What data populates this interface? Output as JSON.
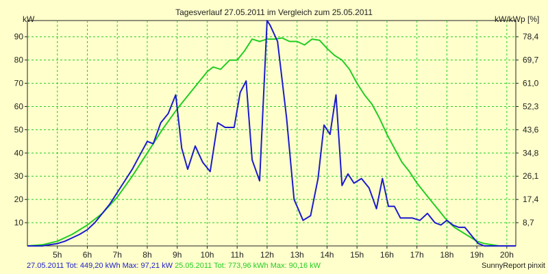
{
  "chart_data": {
    "type": "line",
    "title": "Tagesverlauf 27.05.2011 im Vergleich zum 25.05.2011",
    "ylabel_left": "kW",
    "ylabel_right": "kW/kWp [%]",
    "x_ticks": [
      "5h",
      "6h",
      "7h",
      "8h",
      "9h",
      "10h",
      "11h",
      "12h",
      "13h",
      "14h",
      "15h",
      "16h",
      "17h",
      "18h",
      "19h",
      "20h"
    ],
    "x_tick_values": [
      5,
      6,
      7,
      8,
      9,
      10,
      11,
      12,
      13,
      14,
      15,
      16,
      17,
      18,
      19,
      20
    ],
    "xlim": [
      4.0,
      20.3
    ],
    "ylim": [
      0,
      97
    ],
    "y_ticks_left": [
      10,
      20,
      30,
      40,
      50,
      60,
      70,
      80,
      90
    ],
    "y_ticks_right": [
      "8,7",
      "17,4",
      "26,1",
      "34,8",
      "43,6",
      "52,3",
      "61,0",
      "69,7",
      "78,4"
    ],
    "grid": true,
    "series": [
      {
        "name": "27.05.2011",
        "color": "#1a1acc",
        "x": [
          4.0,
          4.25,
          4.5,
          4.75,
          5.0,
          5.25,
          5.5,
          5.75,
          6.0,
          6.25,
          6.5,
          6.75,
          7.0,
          7.25,
          7.5,
          7.75,
          8.0,
          8.2,
          8.45,
          8.7,
          8.95,
          9.15,
          9.35,
          9.6,
          9.85,
          10.1,
          10.35,
          10.6,
          10.9,
          11.1,
          11.3,
          11.5,
          11.75,
          12.0,
          12.1,
          12.35,
          12.65,
          12.9,
          13.0,
          13.2,
          13.45,
          13.7,
          13.9,
          14.1,
          14.3,
          14.5,
          14.7,
          14.9,
          15.15,
          15.4,
          15.65,
          15.85,
          16.05,
          16.25,
          16.45,
          16.65,
          16.85,
          17.1,
          17.35,
          17.6,
          17.8,
          18.0,
          18.2,
          18.4,
          18.6,
          18.85,
          19.05,
          19.25,
          19.45,
          19.7,
          20.0,
          20.3
        ],
        "y": [
          0,
          0,
          0,
          0.5,
          1,
          2,
          3.5,
          5,
          7,
          10,
          14,
          18,
          23,
          28,
          33,
          39,
          45,
          44,
          53,
          57,
          65,
          42,
          33,
          43,
          36,
          32,
          53,
          51,
          51,
          66,
          71,
          37,
          28,
          97,
          95,
          88,
          55,
          20,
          17,
          11,
          13,
          29,
          52,
          48,
          65,
          26,
          31,
          27,
          29,
          25,
          16,
          29,
          17,
          17,
          12,
          12,
          12,
          11,
          14,
          10,
          9,
          11,
          9,
          8,
          8,
          4,
          1,
          0,
          0,
          0,
          0,
          0
        ]
      },
      {
        "name": "25.05.2011",
        "color": "#22cc22",
        "x": [
          4.0,
          4.5,
          5.0,
          5.5,
          6.0,
          6.5,
          7.0,
          7.5,
          8.0,
          8.5,
          9.0,
          9.5,
          10.0,
          10.2,
          10.45,
          10.75,
          11.0,
          11.25,
          11.5,
          11.75,
          12.0,
          12.25,
          12.5,
          12.75,
          13.0,
          13.25,
          13.5,
          13.75,
          14.0,
          14.25,
          14.5,
          14.75,
          15.0,
          15.25,
          15.5,
          15.75,
          16.0,
          16.25,
          16.5,
          16.75,
          17.0,
          17.25,
          17.5,
          17.75,
          18.0,
          18.25,
          18.5,
          18.75,
          19.0,
          19.25,
          19.5,
          19.75,
          20.0,
          20.3
        ],
        "y": [
          0,
          0.5,
          2,
          5,
          9,
          14,
          21,
          30,
          40,
          50,
          59,
          67,
          75,
          77,
          76,
          80,
          80,
          84,
          89,
          88,
          89,
          89,
          89.5,
          88,
          88,
          86.5,
          89,
          88.5,
          85,
          82,
          80,
          76,
          70,
          65,
          61,
          55,
          48,
          42,
          36,
          32,
          27,
          23,
          19,
          15,
          11,
          8,
          6,
          4,
          2,
          1,
          0.5,
          0,
          0,
          0
        ]
      }
    ]
  },
  "footer": {
    "blue_text": "27.05.2011 Tot: 449,20 kWh Max: 97,21 kW",
    "green_text": "25.05.2011 Tot: 773,96 kWh Max: 90,16 kW",
    "credit": "SunnyReport pinxit"
  }
}
